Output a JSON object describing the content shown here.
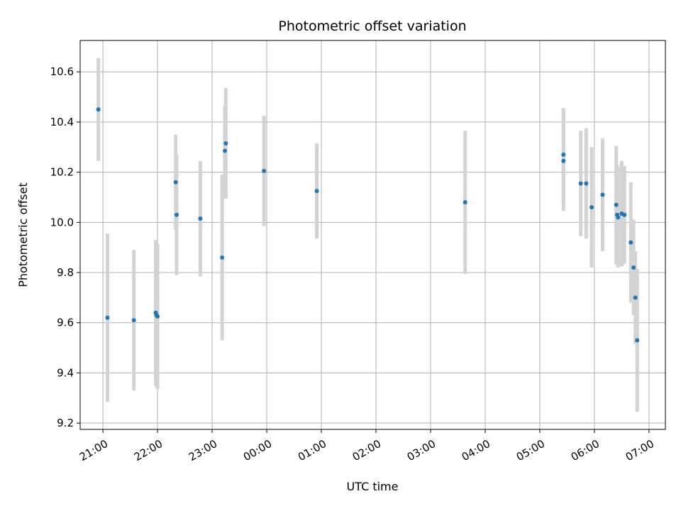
{
  "chart_data": {
    "type": "scatter",
    "title": "Photometric offset variation",
    "xlabel": "UTC time",
    "ylabel": "Photometric offset",
    "grid": true,
    "x_axis": {
      "kind": "time",
      "range": [
        "2023-01-01T20:35",
        "2023-01-02T07:18"
      ],
      "ticks": [
        {
          "time": "2023-01-01T21:00",
          "label": "21:00"
        },
        {
          "time": "2023-01-01T22:00",
          "label": "22:00"
        },
        {
          "time": "2023-01-01T23:00",
          "label": "23:00"
        },
        {
          "time": "2023-01-02T00:00",
          "label": "00:00"
        },
        {
          "time": "2023-01-02T01:00",
          "label": "01:00"
        },
        {
          "time": "2023-01-02T02:00",
          "label": "02:00"
        },
        {
          "time": "2023-01-02T03:00",
          "label": "03:00"
        },
        {
          "time": "2023-01-02T04:00",
          "label": "04:00"
        },
        {
          "time": "2023-01-02T05:00",
          "label": "05:00"
        },
        {
          "time": "2023-01-02T06:00",
          "label": "06:00"
        },
        {
          "time": "2023-01-02T07:00",
          "label": "07:00"
        }
      ]
    },
    "y_axis": {
      "range": [
        9.175,
        10.725
      ],
      "ticks": [
        9.2,
        9.4,
        9.6,
        9.8,
        10.0,
        10.2,
        10.4,
        10.6
      ],
      "tick_labels": [
        "9.2",
        "9.4",
        "9.6",
        "9.8",
        "10.0",
        "10.2",
        "10.4",
        "10.6"
      ]
    },
    "point_color": "#1f77b4",
    "errorbar_color": "#d3d3d3",
    "points": [
      {
        "t": "2023-01-01T20:55",
        "y": 10.45,
        "err": 0.205
      },
      {
        "t": "2023-01-01T21:05",
        "y": 9.62,
        "err": 0.335
      },
      {
        "t": "2023-01-01T21:34",
        "y": 9.61,
        "err": 0.28
      },
      {
        "t": "2023-01-01T21:58",
        "y": 9.64,
        "err": 0.29
      },
      {
        "t": "2023-01-01T21:59",
        "y": 9.63,
        "err": 0.285
      },
      {
        "t": "2023-01-01T22:00",
        "y": 9.625,
        "err": 0.29
      },
      {
        "t": "2023-01-01T22:20",
        "y": 10.16,
        "err": 0.19
      },
      {
        "t": "2023-01-01T22:21",
        "y": 10.03,
        "err": 0.24
      },
      {
        "t": "2023-01-01T22:47",
        "y": 10.015,
        "err": 0.23
      },
      {
        "t": "2023-01-01T23:11",
        "y": 9.86,
        "err": 0.33
      },
      {
        "t": "2023-01-01T23:14",
        "y": 10.285,
        "err": 0.18
      },
      {
        "t": "2023-01-01T23:15",
        "y": 10.315,
        "err": 0.22
      },
      {
        "t": "2023-01-01T23:57",
        "y": 10.205,
        "err": 0.22
      },
      {
        "t": "2023-01-02T00:55",
        "y": 10.125,
        "err": 0.19
      },
      {
        "t": "2023-01-02T03:38",
        "y": 10.08,
        "err": 0.285
      },
      {
        "t": "2023-01-02T05:26",
        "y": 10.27,
        "err": 0.185
      },
      {
        "t": "2023-01-02T05:26",
        "y": 10.245,
        "err": 0.2
      },
      {
        "t": "2023-01-02T05:45",
        "y": 10.155,
        "err": 0.21
      },
      {
        "t": "2023-01-02T05:51",
        "y": 10.155,
        "err": 0.22
      },
      {
        "t": "2023-01-02T05:57",
        "y": 10.06,
        "err": 0.24
      },
      {
        "t": "2023-01-02T06:09",
        "y": 10.11,
        "err": 0.225
      },
      {
        "t": "2023-01-02T06:24",
        "y": 10.07,
        "err": 0.235
      },
      {
        "t": "2023-01-02T06:25",
        "y": 10.03,
        "err": 0.2
      },
      {
        "t": "2023-01-02T06:26",
        "y": 10.02,
        "err": 0.2
      },
      {
        "t": "2023-01-02T06:30",
        "y": 10.035,
        "err": 0.21
      },
      {
        "t": "2023-01-02T06:33",
        "y": 10.03,
        "err": 0.195
      },
      {
        "t": "2023-01-02T06:40",
        "y": 9.92,
        "err": 0.24
      },
      {
        "t": "2023-01-02T06:43",
        "y": 9.82,
        "err": 0.19
      },
      {
        "t": "2023-01-02T06:45",
        "y": 9.7,
        "err": 0.185
      },
      {
        "t": "2023-01-02T06:47",
        "y": 9.53,
        "err": 0.285
      }
    ]
  }
}
